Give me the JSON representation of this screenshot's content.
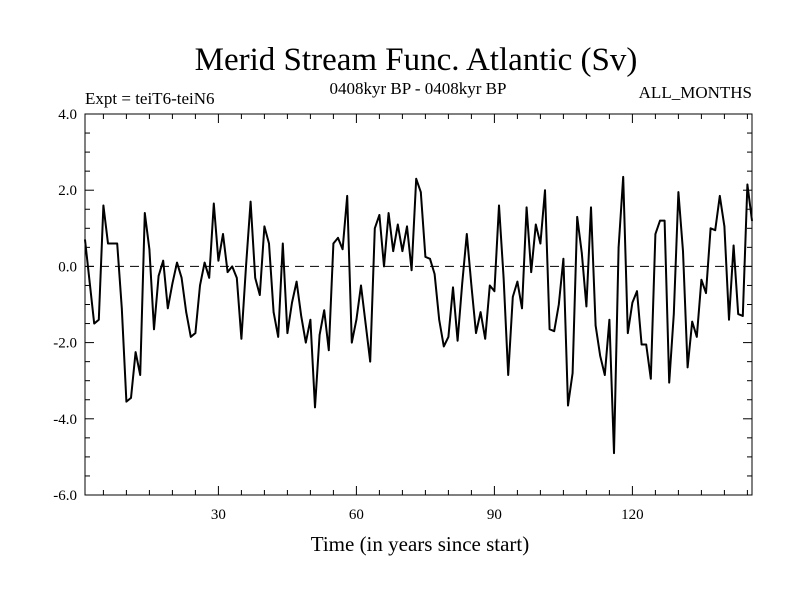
{
  "chart_data": {
    "type": "line",
    "title": "Merid Stream Func. Atlantic (Sv)",
    "subtitle_left": "Expt = teiT6-teiN6",
    "subtitle_center": "0408kyr BP - 0408kyr BP",
    "subtitle_right": "ALL_MONTHS",
    "xlabel": "Time (in years since start)",
    "ylabel": "",
    "xlim": [
      1,
      146
    ],
    "ylim": [
      -6.0,
      4.0
    ],
    "xticks": [
      30,
      60,
      90,
      120
    ],
    "yticks": [
      -6.0,
      -4.0,
      -2.0,
      0.0,
      2.0,
      4.0
    ],
    "ytick_labels": [
      "-6.0",
      "-4.0",
      "-2.0",
      "0.0",
      "2.0",
      "4.0"
    ],
    "zero_line": true,
    "series": [
      {
        "name": "teiT6-teiN6",
        "color": "#000000",
        "x": [
          1,
          2,
          3,
          4,
          5,
          6,
          7,
          8,
          9,
          10,
          11,
          12,
          13,
          14,
          15,
          16,
          17,
          18,
          19,
          20,
          21,
          22,
          23,
          24,
          25,
          26,
          27,
          28,
          29,
          30,
          31,
          32,
          33,
          34,
          35,
          36,
          37,
          38,
          39,
          40,
          41,
          42,
          43,
          44,
          45,
          46,
          47,
          48,
          49,
          50,
          51,
          52,
          53,
          54,
          55,
          56,
          57,
          58,
          59,
          60,
          61,
          62,
          63,
          64,
          65,
          66,
          67,
          68,
          69,
          70,
          71,
          72,
          73,
          74,
          75,
          76,
          77,
          78,
          79,
          80,
          81,
          82,
          83,
          84,
          85,
          86,
          87,
          88,
          89,
          90,
          91,
          92,
          93,
          94,
          95,
          96,
          97,
          98,
          99,
          100,
          101,
          102,
          103,
          104,
          105,
          106,
          107,
          108,
          109,
          110,
          111,
          112,
          113,
          114,
          115,
          116,
          117,
          118,
          119,
          120,
          121,
          122,
          123,
          124,
          125,
          126,
          127,
          128,
          129,
          130,
          131,
          132,
          133,
          134,
          135,
          136,
          137,
          138,
          139,
          140,
          141,
          142,
          143,
          144,
          145,
          146
        ],
        "values": [
          0.7,
          -0.4,
          -1.5,
          -1.4,
          1.6,
          0.6,
          0.6,
          0.6,
          -1.1,
          -3.55,
          -3.45,
          -2.25,
          -2.85,
          1.4,
          0.45,
          -1.65,
          -0.25,
          0.15,
          -1.1,
          -0.45,
          0.1,
          -0.3,
          -1.2,
          -1.85,
          -1.75,
          -0.5,
          0.1,
          -0.3,
          1.65,
          0.15,
          0.85,
          -0.15,
          0.0,
          -0.3,
          -1.9,
          0.0,
          1.7,
          -0.3,
          -0.75,
          1.05,
          0.6,
          -1.2,
          -1.85,
          0.6,
          -1.75,
          -0.95,
          -0.4,
          -1.3,
          -2.0,
          -1.4,
          -3.7,
          -1.8,
          -1.15,
          -2.2,
          0.6,
          0.75,
          0.45,
          1.85,
          -2.0,
          -1.4,
          -0.5,
          -1.5,
          -2.5,
          1.0,
          1.35,
          0.0,
          1.4,
          0.4,
          1.1,
          0.4,
          1.05,
          -0.1,
          2.3,
          1.95,
          0.25,
          0.2,
          -0.2,
          -1.4,
          -2.1,
          -1.85,
          -0.55,
          -1.95,
          -0.45,
          0.85,
          -0.5,
          -1.75,
          -1.2,
          -1.9,
          -0.5,
          -0.65,
          1.6,
          -0.3,
          -2.85,
          -0.8,
          -0.4,
          -1.1,
          1.55,
          -0.15,
          1.1,
          0.6,
          2.0,
          -1.65,
          -1.7,
          -1.0,
          0.2,
          -3.65,
          -2.8,
          1.3,
          0.35,
          -1.05,
          1.55,
          -1.55,
          -2.35,
          -2.85,
          -1.4,
          -4.9,
          0.5,
          2.35,
          -1.75,
          -0.95,
          -0.65,
          -2.05,
          -2.05,
          -2.95,
          0.85,
          1.2,
          1.2,
          -3.05,
          -1.25,
          1.95,
          0.4,
          -2.65,
          -1.45,
          -1.85,
          -0.35,
          -0.7,
          1.0,
          0.95,
          1.85,
          1.05,
          -1.4,
          0.55,
          -1.25,
          -1.3,
          2.15,
          1.2
        ]
      }
    ]
  }
}
